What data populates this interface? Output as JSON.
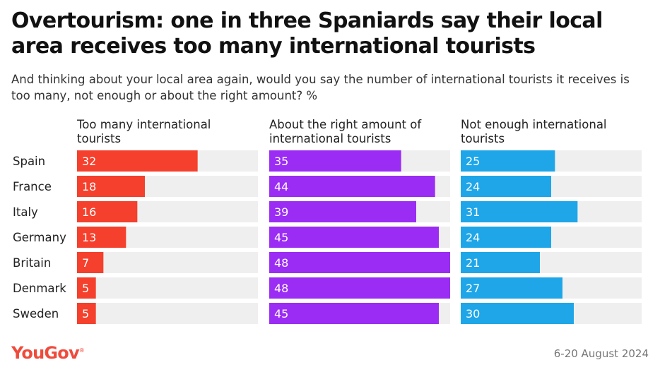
{
  "title": "Overtourism: one in three Spaniards say their local area receives too many international tourists",
  "subtitle": "And thinking about your local area again, would you say the number of international tourists it receives is too many, not enough or about the right amount? %",
  "brand": "YouGov",
  "date": "6-20 August 2024",
  "colors": {
    "too_many": "#f4402c",
    "about_right": "#9b2cf4",
    "not_enough": "#1ea6e8",
    "track": "#efefef"
  },
  "chart_data": {
    "type": "bar",
    "orientation": "horizontal",
    "categories": [
      "Spain",
      "France",
      "Italy",
      "Germany",
      "Britain",
      "Denmark",
      "Sweden"
    ],
    "xlim": [
      0,
      48
    ],
    "grid": false,
    "series": [
      {
        "name": "Too many international tourists",
        "values": [
          32,
          18,
          16,
          13,
          7,
          5,
          5
        ]
      },
      {
        "name": "About the right amount of international tourists",
        "values": [
          35,
          44,
          39,
          45,
          48,
          48,
          45
        ]
      },
      {
        "name": "Not enough international tourists",
        "values": [
          25,
          24,
          31,
          24,
          21,
          27,
          30
        ]
      }
    ]
  }
}
